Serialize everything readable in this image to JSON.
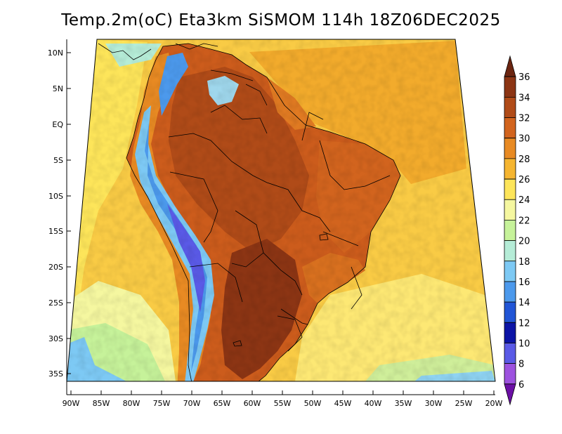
{
  "title": "Temp.2m(oC) Eta3km SiSMOM 114h 18Z06DEC2025",
  "map": {
    "variable": "2 m air temperature",
    "units": "oC",
    "lat_labels": [
      "10N",
      "5N",
      "EQ",
      "5S",
      "10S",
      "15S",
      "20S",
      "25S",
      "30S",
      "35S"
    ],
    "lon_labels": [
      "90W",
      "85W",
      "80W",
      "75W",
      "70W",
      "65W",
      "60W",
      "55W",
      "50W",
      "45W",
      "40W",
      "35W",
      "30W",
      "25W",
      "20W"
    ]
  },
  "colorbar": {
    "labels": [
      "36",
      "34",
      "32",
      "30",
      "28",
      "26",
      "24",
      "22",
      "20",
      "18",
      "16",
      "14",
      "12",
      "10",
      "8",
      "6"
    ],
    "colors": [
      "#6b2510",
      "#8c3514",
      "#b04b18",
      "#d2641e",
      "#e88a23",
      "#f5b530",
      "#fde55a",
      "#f5f7a0",
      "#c6f29a",
      "#b5ecd7",
      "#7dc9f4",
      "#4c99ec",
      "#2155d6",
      "#0c14a6",
      "#5a5ae6",
      "#9d52df",
      "#6b0fa5"
    ]
  }
}
